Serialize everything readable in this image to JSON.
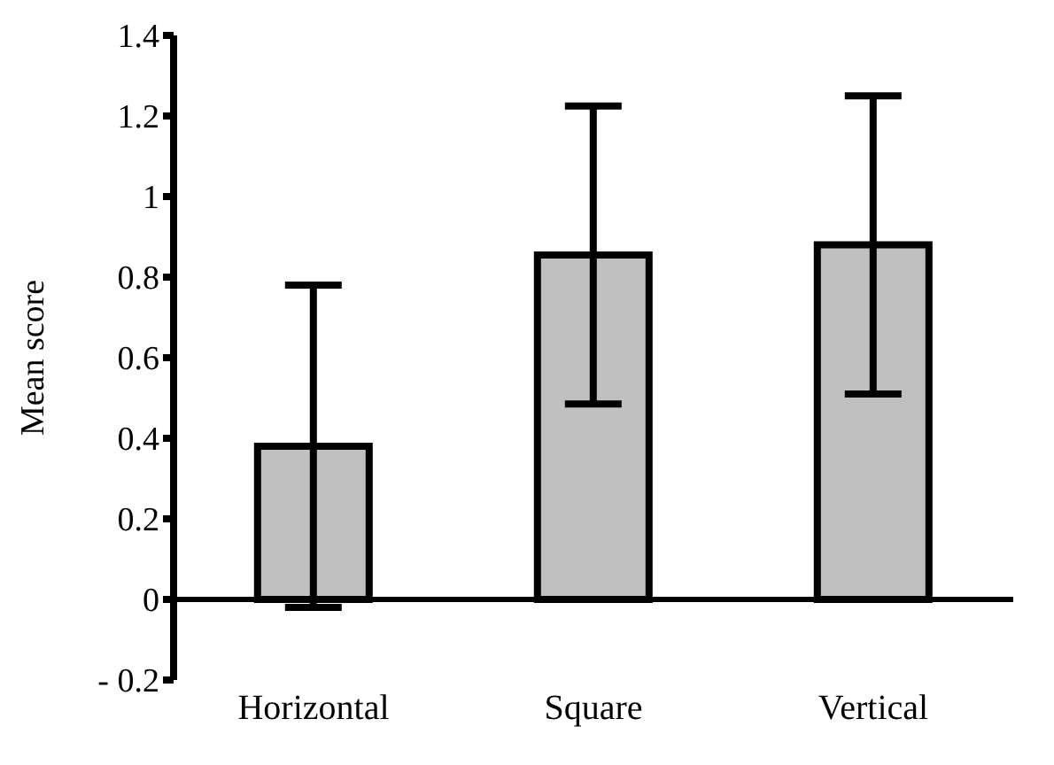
{
  "chart_data": {
    "type": "bar",
    "ylabel": "Mean score",
    "categories": [
      "Horizontal",
      "Square",
      "Vertical"
    ],
    "values": [
      0.38,
      0.855,
      0.88
    ],
    "errors": [
      0.4,
      0.37,
      0.37
    ],
    "color": "#c0c0c0",
    "ylim": [
      -0.2,
      1.4
    ],
    "yticks": [
      {
        "value": -0.2,
        "label": "- 0.2"
      },
      0,
      0.2,
      0.4,
      0.6,
      0.8,
      1,
      1.2,
      1.4
    ],
    "grid": false,
    "legend": false
  }
}
